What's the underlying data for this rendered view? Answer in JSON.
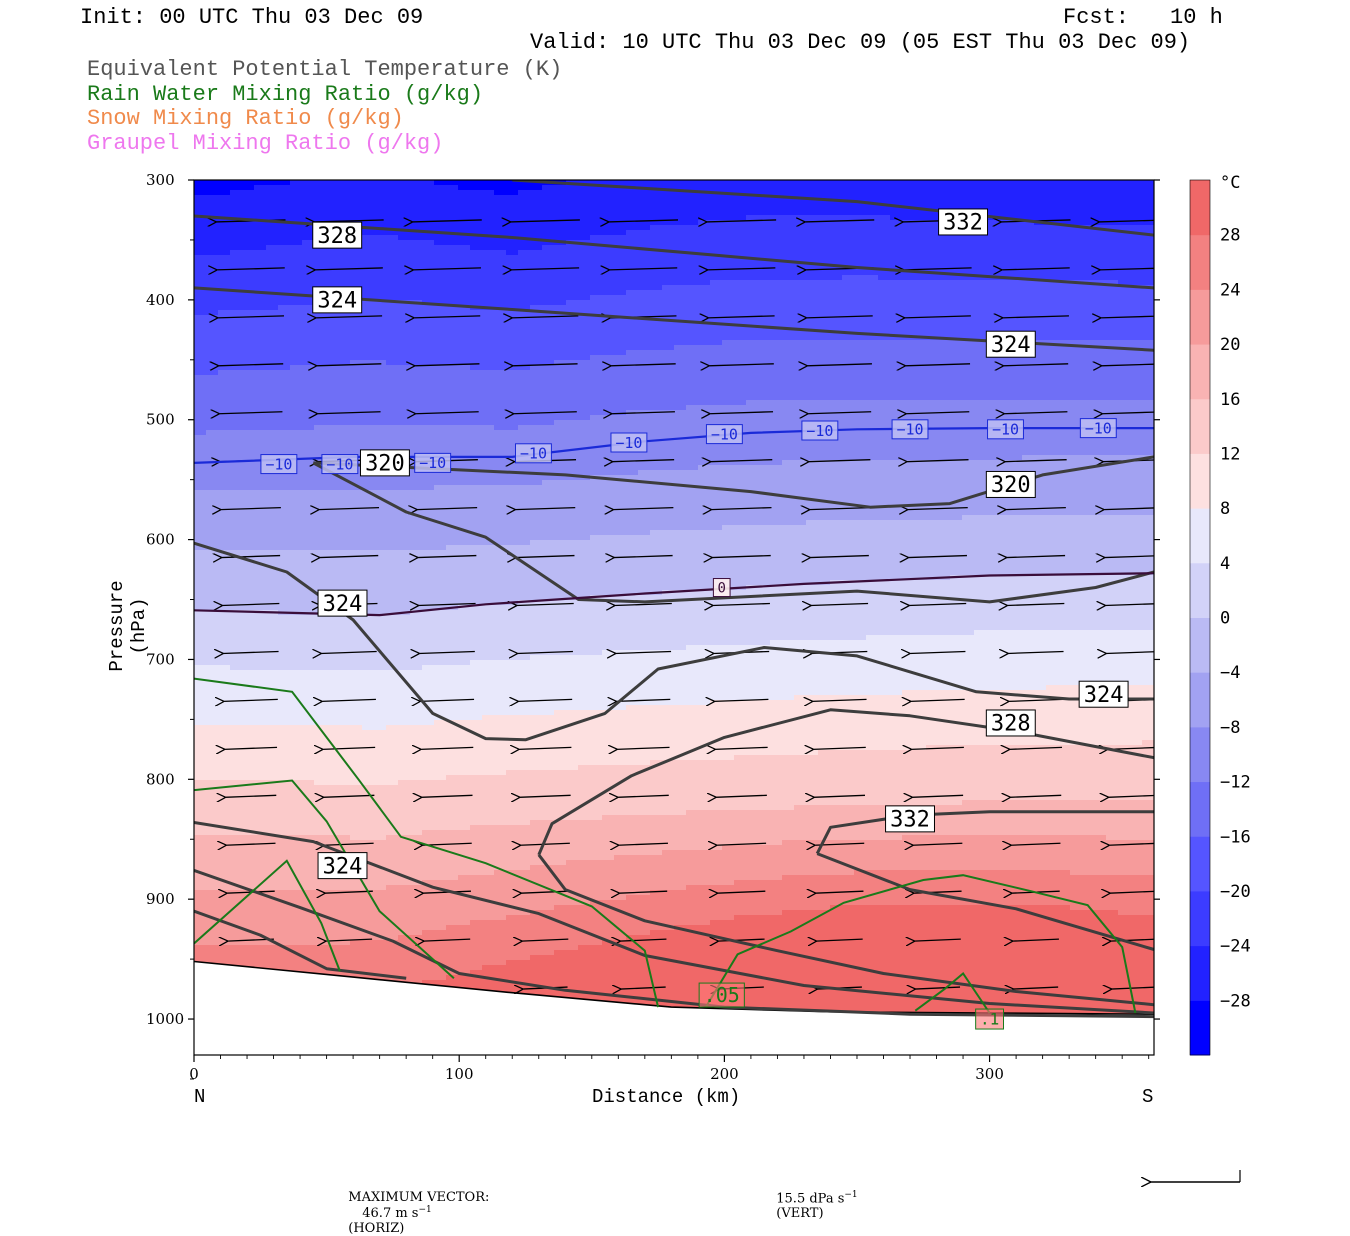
{
  "header": {
    "init": "Init: 00 UTC Thu 03 Dec 09",
    "fcst_label": "Fcst:",
    "fcst_value": "10 h",
    "valid": "Valid: 10 UTC Thu 03 Dec 09 (05 EST Thu 03 Dec 09)"
  },
  "legend": [
    {
      "text": "Equivalent Potential Temperature (K)",
      "color": "#555555"
    },
    {
      "text": "Rain Water Mixing Ratio (g/kg)",
      "color": "#1a7a1a"
    },
    {
      "text": "Snow Mixing Ratio (g/kg)",
      "color": "#f08a4b"
    },
    {
      "text": "Graupel Mixing Ratio (g/kg)",
      "color": "#ee77ee"
    }
  ],
  "axes": {
    "ylabel": "Pressure (hPa)",
    "xlabel": "Distance (km)",
    "left_end": "N",
    "right_end": "S",
    "y_ticks": [
      "300",
      "400",
      "500",
      "600",
      "700",
      "800",
      "900",
      "1000"
    ],
    "x_ticks": [
      "0",
      "100",
      "200",
      "300"
    ]
  },
  "colorbar": {
    "unit": "°C",
    "labels": [
      "28",
      "24",
      "20",
      "16",
      "12",
      "8",
      "4",
      "0",
      "−4",
      "−8",
      "−12",
      "−16",
      "−20",
      "−24",
      "−28"
    ]
  },
  "footer": {
    "max_vector_label": "MAXIMUM VECTOR:",
    "horiz_value": "46.7 m s",
    "horiz_exp": "−1",
    "horiz_tag": "(HORIZ)",
    "vert_value": "15.5 dPa s",
    "vert_exp": "−1",
    "vert_tag": "(VERT)"
  },
  "chart_data": {
    "type": "cross-section",
    "x_range_km": [
      0,
      362
    ],
    "y_range_hPa": [
      300,
      1030
    ],
    "y_scale": "linear",
    "temperature_fill_range_C": [
      -32,
      32
    ],
    "temperature_fill_step_C": 4,
    "theta_e_contours": [
      {
        "label": "332",
        "points": [
          [
            120,
            300
          ],
          [
            250,
            318
          ],
          [
            362,
            346
          ]
        ]
      },
      {
        "label": "328",
        "points": [
          [
            0,
            330
          ],
          [
            120,
            348
          ],
          [
            250,
            373
          ],
          [
            362,
            390
          ]
        ]
      },
      {
        "label": "324",
        "points": [
          [
            0,
            390
          ],
          [
            120,
            408
          ],
          [
            250,
            428
          ],
          [
            362,
            442
          ]
        ]
      },
      {
        "label": "320",
        "points": [
          [
            45,
            536
          ],
          [
            140,
            546
          ],
          [
            210,
            560
          ],
          [
            255,
            573
          ],
          [
            285,
            570
          ],
          [
            320,
            546
          ],
          [
            362,
            531
          ]
        ]
      },
      {
        "label": "324",
        "points": [
          [
            0,
            603
          ],
          [
            35,
            627
          ],
          [
            60,
            667
          ],
          [
            90,
            745
          ],
          [
            110,
            766
          ],
          [
            125,
            767
          ],
          [
            155,
            745
          ],
          [
            175,
            708
          ],
          [
            215,
            690
          ],
          [
            250,
            697
          ],
          [
            295,
            727
          ],
          [
            330,
            733
          ],
          [
            362,
            733
          ]
        ]
      },
      {
        "label": "328",
        "points": [
          [
            45,
            536
          ],
          [
            80,
            577
          ],
          [
            110,
            598
          ],
          [
            145,
            650
          ],
          [
            170,
            652
          ],
          [
            250,
            643
          ],
          [
            300,
            652
          ],
          [
            340,
            640
          ],
          [
            362,
            627
          ]
        ]
      },
      {
        "label": "332",
        "points": [
          [
            130,
            863
          ],
          [
            135,
            837
          ],
          [
            165,
            797
          ],
          [
            200,
            765
          ],
          [
            240,
            742
          ],
          [
            270,
            747
          ],
          [
            310,
            760
          ],
          [
            362,
            782
          ]
        ]
      },
      {
        "label": "332",
        "points": [
          [
            130,
            863
          ],
          [
            140,
            892
          ],
          [
            170,
            918
          ],
          [
            220,
            943
          ],
          [
            260,
            962
          ],
          [
            310,
            977
          ],
          [
            362,
            988
          ]
        ]
      },
      {
        "label": "332",
        "points": [
          [
            235,
            862
          ],
          [
            240,
            840
          ],
          [
            270,
            830
          ],
          [
            300,
            827
          ],
          [
            362,
            827
          ]
        ]
      },
      {
        "label": "332",
        "points": [
          [
            235,
            862
          ],
          [
            270,
            892
          ],
          [
            310,
            908
          ],
          [
            362,
            942
          ]
        ]
      },
      {
        "label": "324",
        "points": [
          [
            0,
            836
          ],
          [
            45,
            852
          ],
          [
            90,
            890
          ],
          [
            130,
            912
          ],
          [
            170,
            947
          ],
          [
            230,
            972
          ],
          [
            300,
            987
          ],
          [
            362,
            995
          ]
        ]
      },
      {
        "label": "324",
        "points": [
          [
            0,
            876
          ],
          [
            40,
            907
          ],
          [
            75,
            935
          ],
          [
            100,
            962
          ],
          [
            140,
            976
          ],
          [
            200,
            990
          ],
          [
            270,
            996
          ],
          [
            362,
            998
          ]
        ]
      },
      {
        "label": "324",
        "points": [
          [
            0,
            910
          ],
          [
            25,
            930
          ],
          [
            50,
            958
          ],
          [
            80,
            966
          ]
        ]
      }
    ],
    "isotherms": [
      {
        "label": "−10",
        "points": [
          [
            0,
            536
          ],
          [
            60,
            531
          ],
          [
            120,
            531
          ],
          [
            170,
            518
          ],
          [
            210,
            511
          ],
          [
            250,
            508
          ],
          [
            300,
            507
          ],
          [
            362,
            507
          ]
        ]
      },
      {
        "label": "0",
        "points": [
          [
            0,
            659
          ],
          [
            70,
            663
          ],
          [
            110,
            654
          ],
          [
            170,
            645
          ],
          [
            230,
            637
          ],
          [
            300,
            630
          ],
          [
            362,
            628
          ]
        ]
      }
    ],
    "rain_water_contours": [
      {
        "label": ".05",
        "points": [
          [
            0,
            716
          ],
          [
            37,
            727
          ],
          [
            62,
            800
          ],
          [
            78,
            848
          ],
          [
            110,
            870
          ],
          [
            150,
            906
          ],
          [
            170,
            943
          ],
          [
            175,
            990
          ]
        ]
      },
      {
        "label": ".05",
        "points": [
          [
            0,
            809
          ],
          [
            37,
            801
          ],
          [
            50,
            835
          ],
          [
            70,
            910
          ],
          [
            98,
            966
          ]
        ]
      },
      {
        "label": ".05",
        "points": [
          [
            0,
            937
          ],
          [
            35,
            868
          ],
          [
            48,
            920
          ],
          [
            55,
            960
          ]
        ]
      },
      {
        "label": ".1",
        "points": [
          [
            193,
            990
          ],
          [
            205,
            946
          ],
          [
            225,
            927
          ],
          [
            245,
            903
          ],
          [
            275,
            884
          ],
          [
            290,
            880
          ],
          [
            315,
            893
          ],
          [
            337,
            905
          ],
          [
            350,
            940
          ],
          [
            355,
            995
          ]
        ]
      },
      {
        "label": ".1",
        "points": [
          [
            272,
            993
          ],
          [
            283,
            975
          ],
          [
            290,
            962
          ],
          [
            300,
            995
          ]
        ]
      }
    ],
    "vector_layer": {
      "type": "vectors",
      "direction": "north (toward left)",
      "max_horizontal_m_s": 46.7,
      "max_vertical_dPa_s": 15.5
    }
  }
}
